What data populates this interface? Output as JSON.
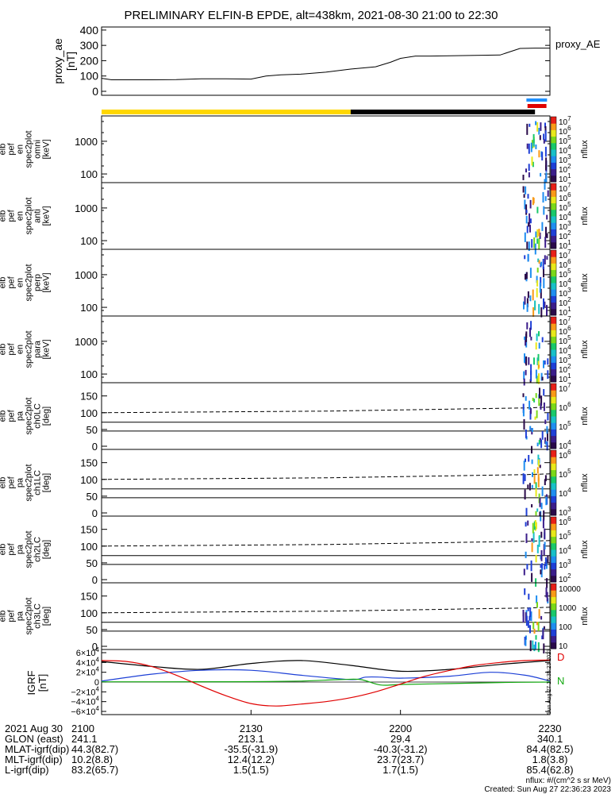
{
  "title": "PRELIMINARY ELFIN-B EPDE, alt=438km, 2021-08-30 21:00 to 22:30",
  "colors": {
    "proxy_line": "#000000",
    "yellow_bar": "#ffd700",
    "black_bar": "#000000",
    "blue_marks": "#1e90ff",
    "red_bar": "#e00000",
    "bx": "#000000",
    "by": "#1c3fd6",
    "bz": "#12a80f",
    "red_curve": "#e00000",
    "dashed": "#000000"
  },
  "chart_data": [
    {
      "type": "line",
      "name": "proxy_ae",
      "ylabel": [
        "proxy_ae",
        "[nT]"
      ],
      "yticks": [
        "400",
        "300",
        "200",
        "100",
        "0"
      ],
      "ylim": [
        0,
        420
      ],
      "xlim": [
        0,
        90
      ],
      "legend": "proxy_AE",
      "x_minutes": [
        0,
        2,
        5,
        10,
        15,
        20,
        25,
        30,
        33,
        36,
        40,
        45,
        50,
        55,
        58,
        60,
        63,
        66,
        70,
        75,
        80,
        84,
        87,
        90
      ],
      "values": [
        85,
        75,
        75,
        75,
        76,
        82,
        82,
        80,
        100,
        108,
        112,
        125,
        145,
        160,
        190,
        215,
        230,
        230,
        232,
        235,
        237,
        280,
        282,
        282
      ]
    },
    {
      "type": "heatmap",
      "name": "elb_pef_en_spec2plot_omni",
      "ylabel": [
        "elb",
        "pef",
        "en",
        "spec2plot",
        "omni",
        "[keV]"
      ],
      "yticks": [
        "1000",
        "100"
      ],
      "colorbar": {
        "label": "nflux",
        "ticks": [
          "10^7",
          "10^6",
          "10^5",
          "10^4",
          "10^3",
          "10^2",
          "10^1"
        ]
      }
    },
    {
      "type": "heatmap",
      "name": "elb_pef_en_spec2plot_anti",
      "ylabel": [
        "elb",
        "pef",
        "en",
        "spec2plot",
        "anti",
        "[keV]"
      ],
      "yticks": [
        "1000",
        "100"
      ],
      "colorbar": {
        "label": "nflux",
        "ticks": [
          "10^7",
          "10^6",
          "10^5",
          "10^4",
          "10^3",
          "10^2",
          "10^1"
        ]
      }
    },
    {
      "type": "heatmap",
      "name": "elb_pef_en_spec2plot_perp",
      "ylabel": [
        "elb",
        "pef",
        "en",
        "spec2plot",
        "perp",
        "[keV]"
      ],
      "yticks": [
        "1000",
        "100"
      ],
      "colorbar": {
        "label": "nflux",
        "ticks": [
          "10^7",
          "10^6",
          "10^5",
          "10^4",
          "10^3",
          "10^2",
          "10^1"
        ]
      }
    },
    {
      "type": "heatmap",
      "name": "elb_pef_en_spec2plot_para",
      "ylabel": [
        "elb",
        "pef",
        "en",
        "spec2plot",
        "para",
        "[keV]"
      ],
      "yticks": [
        "1000",
        "100"
      ],
      "colorbar": {
        "label": "nflux",
        "ticks": [
          "10^7",
          "10^6",
          "10^5",
          "10^4",
          "10^3",
          "10^2",
          "10^1"
        ]
      }
    },
    {
      "type": "heatmap",
      "name": "elb_pef_pa_spec2plot_ch0LC",
      "ylabel": [
        "elb",
        "pef",
        "pa",
        "spec2plot",
        "ch0LC",
        "[deg]"
      ],
      "yticks": [
        "150",
        "100",
        "50",
        "0"
      ],
      "ylim": [
        0,
        180
      ],
      "colorbar": {
        "label": "nflux",
        "ticks": [
          "10^7",
          "10^6",
          "10^5",
          "10^4"
        ]
      }
    },
    {
      "type": "heatmap",
      "name": "elb_pef_pa_spec2plot_ch1LC",
      "ylabel": [
        "elb",
        "pef",
        "pa",
        "spec2plot",
        "ch1LC",
        "[deg]"
      ],
      "yticks": [
        "150",
        "100",
        "50",
        "0"
      ],
      "ylim": [
        0,
        180
      ],
      "colorbar": {
        "label": "nflux",
        "ticks": [
          "10^6",
          "10^5",
          "10^4",
          "10^3"
        ]
      }
    },
    {
      "type": "heatmap",
      "name": "elb_pef_pa_spec2plot_ch2LC",
      "ylabel": [
        "elb",
        "pef",
        "pa",
        "spec2plot",
        "ch2LC",
        "[deg]"
      ],
      "yticks": [
        "150",
        "100",
        "50",
        "0"
      ],
      "ylim": [
        0,
        180
      ],
      "colorbar": {
        "label": "nflux",
        "ticks": [
          "10^6",
          "10^5",
          "10^4",
          "10^3",
          "10^2"
        ]
      }
    },
    {
      "type": "heatmap",
      "name": "elb_pef_pa_spec2plot_ch3LC",
      "ylabel": [
        "elb",
        "pef",
        "pa",
        "spec2plot",
        "ch3LC",
        "[deg]"
      ],
      "yticks": [
        "150",
        "100",
        "50",
        "0"
      ],
      "ylim": [
        0,
        180
      ],
      "colorbar": {
        "label": "nflux",
        "ticks": [
          "10000",
          "1000",
          "100",
          "10"
        ]
      }
    },
    {
      "type": "line",
      "name": "IGRF",
      "ylabel": [
        "IGRF",
        "[nT]"
      ],
      "yticks": [
        "6×10^4",
        "4×10^4",
        "2×10^4",
        "0",
        "−2×10^4",
        "−4×10^4",
        "−6×10^4"
      ],
      "ylim": [
        -60000,
        60000
      ],
      "xlim": [
        0,
        90
      ],
      "side_labels": [
        "D",
        "N"
      ],
      "timestamp": "Sun Aug 27 15:35:23 2023",
      "series": [
        {
          "key": "bx",
          "x_minutes": [
            0,
            10,
            20,
            30,
            40,
            50,
            60,
            70,
            80,
            90
          ],
          "values": [
            42000,
            32000,
            26000,
            38000,
            44000,
            34000,
            22000,
            26000,
            36000,
            44000
          ]
        },
        {
          "key": "by",
          "x_minutes": [
            0,
            10,
            20,
            30,
            40,
            50,
            53,
            56,
            60,
            70,
            78,
            85,
            90
          ],
          "values": [
            2000,
            16000,
            24000,
            24000,
            14000,
            5000,
            10000,
            10000,
            8000,
            12000,
            20000,
            14000,
            2000
          ]
        },
        {
          "key": "bz",
          "x_minutes": [
            0,
            10,
            20,
            30,
            40,
            48,
            52,
            56,
            60,
            70,
            80,
            90
          ],
          "values": [
            500,
            500,
            600,
            800,
            2000,
            5000,
            5000,
            -6000,
            -5000,
            -3000,
            -1000,
            0
          ]
        },
        {
          "key": "red_curve",
          "x_minutes": [
            0,
            5,
            10,
            15,
            20,
            25,
            30,
            35,
            40,
            45,
            50,
            55,
            60,
            65,
            70,
            75,
            80,
            85,
            90
          ],
          "values": [
            44000,
            42000,
            32000,
            14000,
            -8000,
            -28000,
            -44000,
            -49000,
            -45000,
            -40000,
            -32000,
            -20000,
            -4000,
            12000,
            24000,
            34000,
            40000,
            44000,
            45000
          ]
        }
      ]
    }
  ],
  "status_bars": {
    "yellow_end_min": 50,
    "black_end_min": 87,
    "blue_marks_min": [
      85.6,
      86.1,
      86.6,
      87.1,
      87.6,
      88.1,
      88.6,
      89.1
    ],
    "red_range_min": [
      85.5,
      89.3
    ]
  },
  "footer": {
    "rows": [
      {
        "label": "2021 Aug 30",
        "values": [
          "2100",
          "2130",
          "2200",
          "2230"
        ]
      },
      {
        "label": "GLON (east)",
        "values": [
          "241.1",
          "213.1",
          "29.4",
          "340.1"
        ]
      },
      {
        "label": "MLAT-igrf(dip)",
        "values": [
          "44.3(82.7)",
          "-35.5(-31.9)",
          "-40.3(-31.2)",
          "84.4(82.5)"
        ]
      },
      {
        "label": "MLT-igrf(dip)",
        "values": [
          "10.2(8.8)",
          "12.4(12.2)",
          "23.7(23.7)",
          "1.8(3.8)"
        ]
      },
      {
        "label": "L-igrf(dip)",
        "values": [
          "83.2(65.7)",
          "1.5(1.5)",
          "1.7(1.5)",
          "85.4(62.8)"
        ]
      }
    ],
    "nflux_units": "nflux: #/(cm^2 s sr MeV)",
    "created": "Created: Sun Aug 27 22:36:23 2023"
  }
}
